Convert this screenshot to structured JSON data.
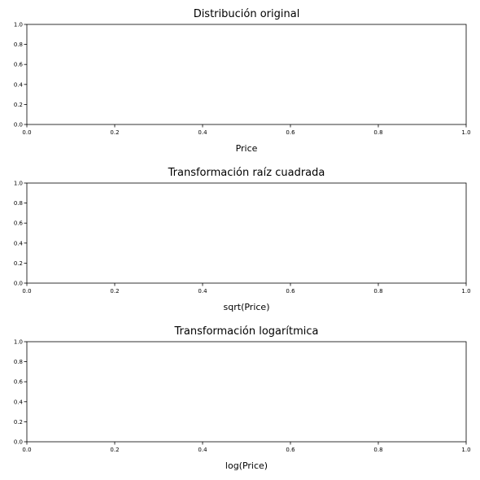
{
  "chart_data": [
    {
      "type": "line",
      "title": "Distribución original",
      "xlabel": "Price",
      "ylabel": "",
      "xlim": [
        0,
        1
      ],
      "ylim": [
        0,
        1
      ],
      "xticks": [
        "0.0",
        "0.2",
        "0.4",
        "0.6",
        "0.8",
        "1.0"
      ],
      "yticks": [
        "0.0",
        "0.2",
        "0.4",
        "0.6",
        "0.8",
        "1.0"
      ],
      "series": [],
      "grid": false
    },
    {
      "type": "line",
      "title": "Transformación raíz cuadrada",
      "xlabel": "sqrt(Price)",
      "ylabel": "",
      "xlim": [
        0,
        1
      ],
      "ylim": [
        0,
        1
      ],
      "xticks": [
        "0.0",
        "0.2",
        "0.4",
        "0.6",
        "0.8",
        "1.0"
      ],
      "yticks": [
        "0.0",
        "0.2",
        "0.4",
        "0.6",
        "0.8",
        "1.0"
      ],
      "series": [],
      "grid": false
    },
    {
      "type": "line",
      "title": "Transformación logarítmica",
      "xlabel": "log(Price)",
      "ylabel": "",
      "xlim": [
        0,
        1
      ],
      "ylim": [
        0,
        1
      ],
      "xticks": [
        "0.0",
        "0.2",
        "0.4",
        "0.6",
        "0.8",
        "1.0"
      ],
      "yticks": [
        "0.0",
        "0.2",
        "0.4",
        "0.6",
        "0.8",
        "1.0"
      ],
      "series": [],
      "grid": false
    }
  ]
}
